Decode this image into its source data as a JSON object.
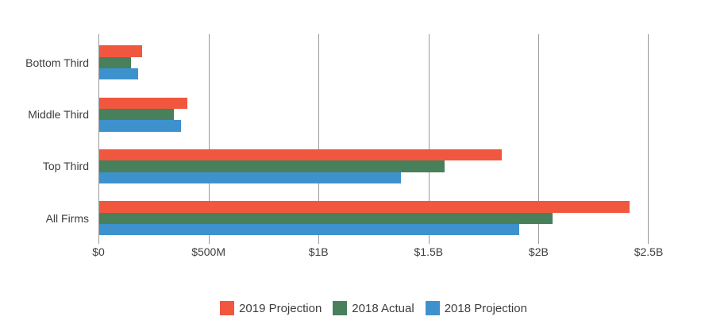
{
  "chart_data": {
    "type": "bar",
    "orientation": "horizontal",
    "title": "",
    "unit": "USD millions",
    "categories": [
      "Bottom Third",
      "Middle Third",
      "Top Third",
      "All Firms"
    ],
    "series": [
      {
        "name": "2019 Projection",
        "color": "#F1563F",
        "values": [
          195,
          400,
          1830,
          2410
        ]
      },
      {
        "name": "2018 Actual",
        "color": "#47805A",
        "values": [
          145,
          340,
          1570,
          2060
        ]
      },
      {
        "name": "2018 Projection",
        "color": "#3D92CE",
        "values": [
          175,
          370,
          1370,
          1910
        ]
      }
    ],
    "x_axis": {
      "tick_labels": [
        "$0",
        "$500M",
        "$1B",
        "$1.5B",
        "$2B",
        "$2.5B"
      ],
      "tick_values": [
        0,
        500,
        1000,
        1500,
        2000,
        2500
      ],
      "max": 2500
    },
    "grid": "vertical",
    "legend_position": "bottom"
  },
  "colors": {
    "gridline": "#999999",
    "text": "#3D3D3D",
    "background": "#FFFFFF"
  }
}
